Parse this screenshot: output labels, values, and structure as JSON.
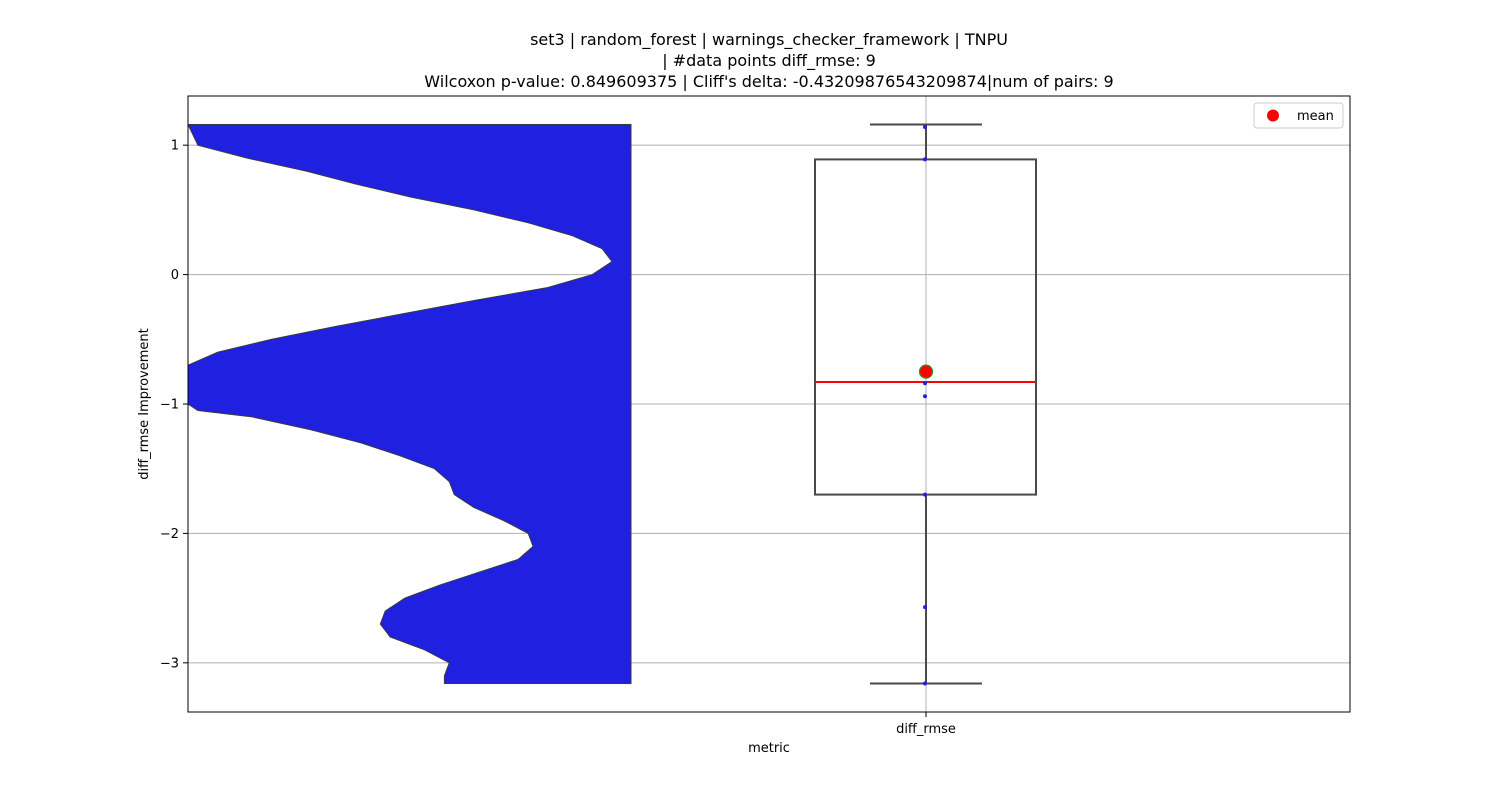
{
  "chart_data": {
    "type": "box",
    "title_lines": [
      "set3 | random_forest | warnings_checker_framework | TNPU",
      "| #data points diff_rmse: 9",
      "Wilcoxon p-value: 0.849609375 | Cliff's delta: -0.43209876543209874|num of pairs: 9"
    ],
    "xlabel": "metric",
    "ylabel": "diff_rmse Improvement",
    "categories": [
      "diff_rmse"
    ],
    "ylim": [
      -3.38,
      1.38
    ],
    "yticks": [
      1,
      0,
      -1,
      -2,
      -3
    ],
    "ytick_labels": [
      "1",
      "0",
      "−1",
      "−2",
      "−3"
    ],
    "grid": true,
    "legend": {
      "position": "top-right",
      "entries": [
        "mean"
      ]
    },
    "box": {
      "whisker_low": -3.16,
      "q1": -1.7,
      "median": -0.83,
      "q3": 0.89,
      "whisker_high": 1.16,
      "mean": -0.75
    },
    "points": [
      1.14,
      0.89,
      -0.84,
      -0.94,
      -1.7,
      -2.57,
      -3.16
    ],
    "violin": {
      "y": [
        1.16,
        1.0,
        0.9,
        0.8,
        0.7,
        0.6,
        0.5,
        0.4,
        0.3,
        0.2,
        0.1,
        0.0,
        -0.1,
        -0.2,
        -0.3,
        -0.4,
        -0.5,
        -0.6,
        -0.7,
        -0.8,
        -0.9,
        -1.0,
        -1.05,
        -1.1,
        -1.2,
        -1.3,
        -1.4,
        -1.5,
        -1.6,
        -1.7,
        -1.8,
        -1.9,
        -2.0,
        -2.1,
        -2.2,
        -2.3,
        -2.4,
        -2.5,
        -2.6,
        -2.7,
        -2.8,
        -2.9,
        -3.0,
        -3.1,
        -3.16
      ],
      "density": [
        0.0,
        0.02,
        0.12,
        0.24,
        0.34,
        0.45,
        0.58,
        0.69,
        0.78,
        0.84,
        0.86,
        0.82,
        0.73,
        0.58,
        0.44,
        0.3,
        0.17,
        0.06,
        0.0,
        0.0,
        0.0,
        0.0,
        0.02,
        0.13,
        0.25,
        0.35,
        0.43,
        0.5,
        0.53,
        0.54,
        0.58,
        0.64,
        0.69,
        0.7,
        0.67,
        0.59,
        0.51,
        0.44,
        0.4,
        0.39,
        0.41,
        0.48,
        0.53,
        0.52,
        0.52
      ]
    },
    "colors": {
      "violin_fill": "#2020e0",
      "violin_edge": "#3a3a3a",
      "box_edge": "#4a4a4a",
      "median": "#ff0000",
      "mean_fill": "#ff0000",
      "mean_edge": "#2e8b2e",
      "points": "#2020e0",
      "grid": "#b0b0b0"
    }
  }
}
